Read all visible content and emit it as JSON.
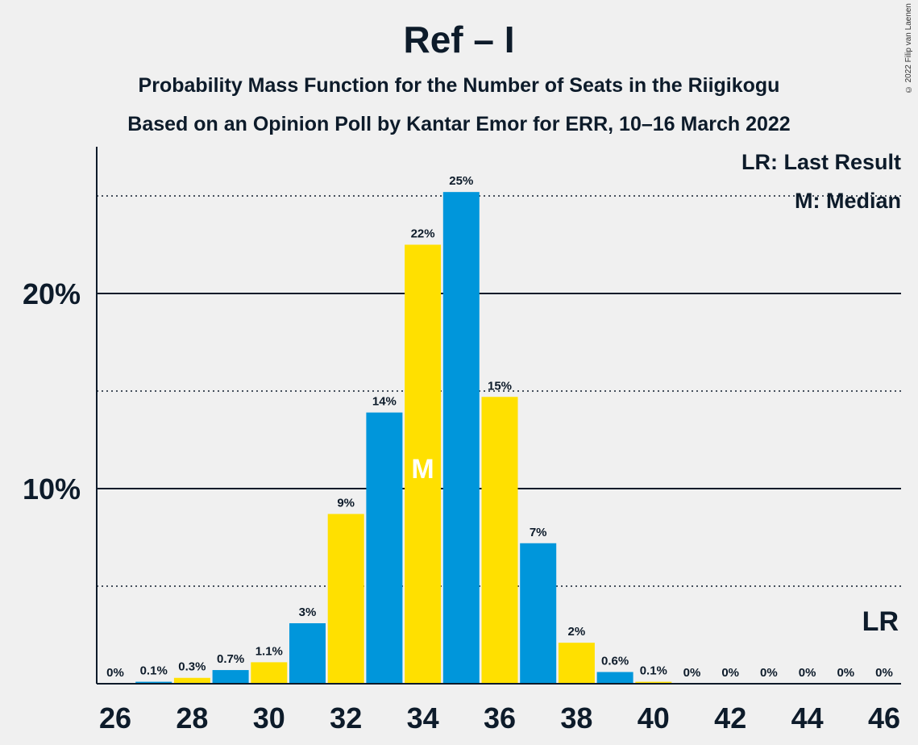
{
  "title": "Ref – I",
  "subtitle_1": "Probability Mass Function for the Number of Seats in the Riigikogu",
  "subtitle_2": "Based on an Opinion Poll by Kantar Emor for ERR, 10–16 March 2022",
  "copyright": "© 2022 Filip van Laenen",
  "legend": {
    "last_result": "LR: Last Result",
    "median": "M: Median"
  },
  "colors": {
    "blue": "#0096db",
    "yellow": "#ffe000",
    "text": "#0d1b2a",
    "background": "#f0f0f0"
  },
  "chart_data": {
    "type": "bar",
    "x": [
      26,
      27,
      28,
      29,
      30,
      31,
      32,
      33,
      34,
      35,
      36,
      37,
      38,
      39,
      40,
      41,
      42,
      43,
      44,
      45,
      46
    ],
    "values": [
      0,
      0.1,
      0.3,
      0.7,
      1.1,
      3.1,
      8.7,
      13.9,
      22.5,
      25.2,
      14.7,
      7.2,
      2.1,
      0.6,
      0.1,
      0,
      0,
      0,
      0,
      0,
      0
    ],
    "labels": [
      "0%",
      "0.1%",
      "0.3%",
      "0.7%",
      "1.1%",
      "3%",
      "9%",
      "14%",
      "22%",
      "25%",
      "15%",
      "7%",
      "2%",
      "0.6%",
      "0.1%",
      "0%",
      "0%",
      "0%",
      "0%",
      "0%",
      "0%"
    ],
    "xticks": [
      "26",
      "28",
      "30",
      "32",
      "34",
      "36",
      "38",
      "40",
      "42",
      "44",
      "46"
    ],
    "ytick_labels": [
      "10%",
      "20%"
    ],
    "yticks": [
      10,
      20
    ],
    "minor_gridlines": [
      5,
      15,
      25
    ],
    "ylim": [
      0,
      27.5
    ],
    "median_seat": 34,
    "median_label": "M",
    "last_result_seat": 46,
    "last_result_label": "LR",
    "legend_position": "top-right"
  }
}
